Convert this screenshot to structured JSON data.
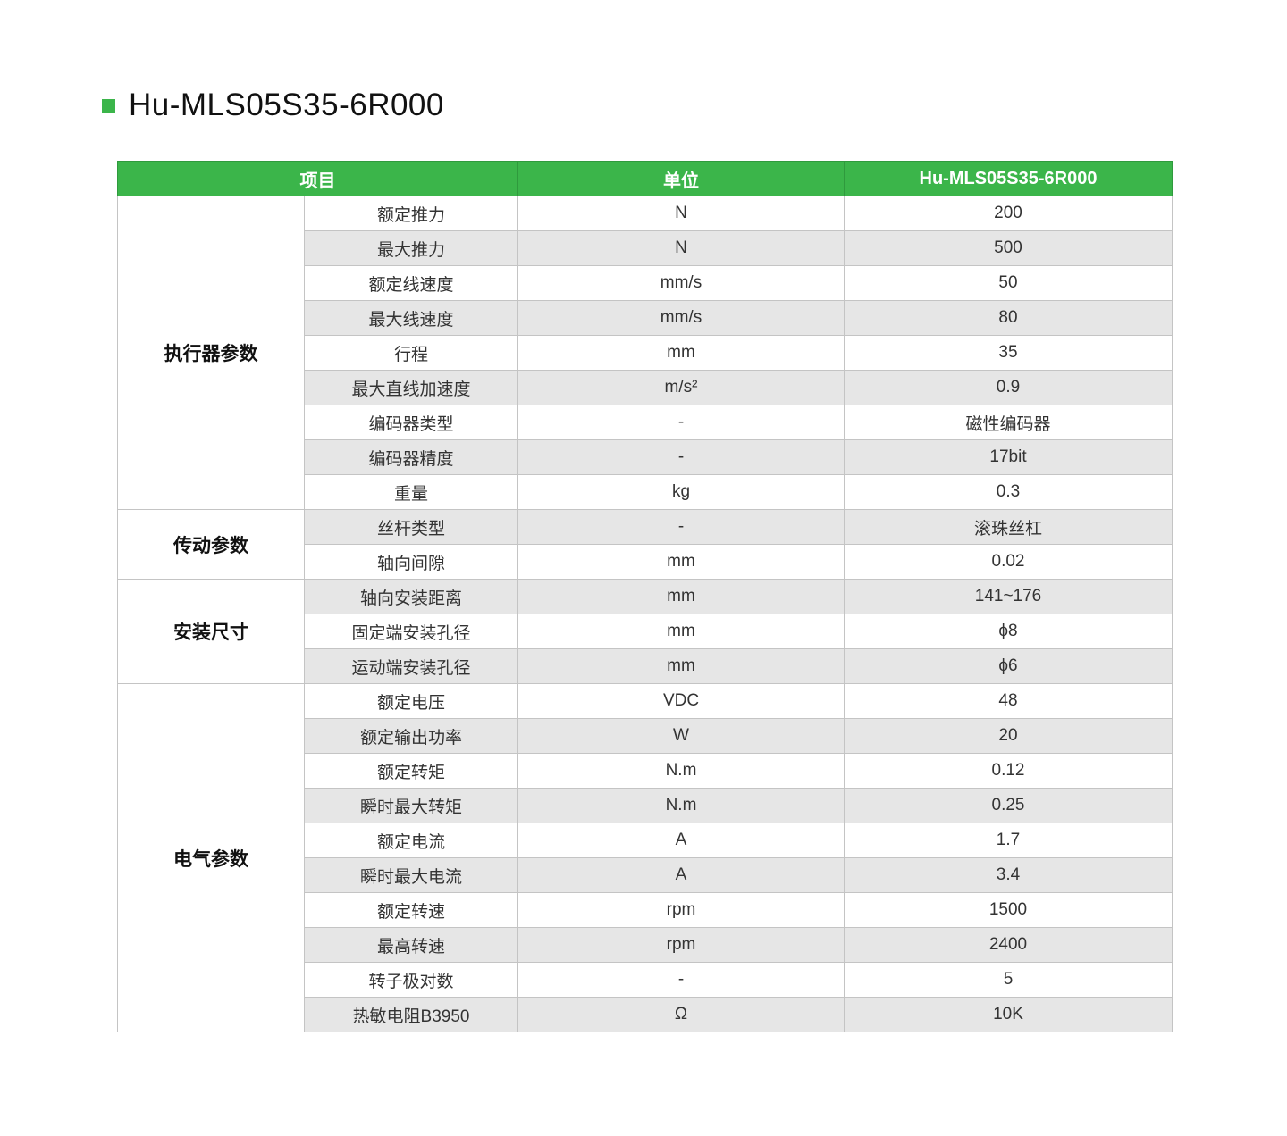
{
  "title": "Hu-MLS05S35-6R000",
  "accent_color": "#3bb54a",
  "header": {
    "item": "项目",
    "unit": "单位",
    "value": "Hu-MLS05S35-6R000"
  },
  "groups": [
    {
      "name": "执行器参数",
      "rows": [
        {
          "item": "额定推力",
          "unit": "N",
          "value": "200"
        },
        {
          "item": "最大推力",
          "unit": "N",
          "value": "500"
        },
        {
          "item": "额定线速度",
          "unit": "mm/s",
          "value": "50"
        },
        {
          "item": "最大线速度",
          "unit": "mm/s",
          "value": "80"
        },
        {
          "item": "行程",
          "unit": "mm",
          "value": "35"
        },
        {
          "item": "最大直线加速度",
          "unit": "m/s²",
          "value": "0.9"
        },
        {
          "item": "编码器类型",
          "unit": "-",
          "value": "磁性编码器"
        },
        {
          "item": "编码器精度",
          "unit": "-",
          "value": "17bit"
        },
        {
          "item": "重量",
          "unit": "kg",
          "value": "0.3"
        }
      ]
    },
    {
      "name": "传动参数",
      "rows": [
        {
          "item": "丝杆类型",
          "unit": "-",
          "value": "滚珠丝杠"
        },
        {
          "item": "轴向间隙",
          "unit": "mm",
          "value": "0.02"
        }
      ]
    },
    {
      "name": "安装尺寸",
      "rows": [
        {
          "item": "轴向安装距离",
          "unit": "mm",
          "value": "141~176"
        },
        {
          "item": "固定端安装孔径",
          "unit": "mm",
          "value": "ϕ8"
        },
        {
          "item": "运动端安装孔径",
          "unit": "mm",
          "value": "ϕ6"
        }
      ]
    },
    {
      "name": "电气参数",
      "rows": [
        {
          "item": "额定电压",
          "unit": "VDC",
          "value": "48"
        },
        {
          "item": "额定输出功率",
          "unit": "W",
          "value": "20"
        },
        {
          "item": "额定转矩",
          "unit": "N.m",
          "value": "0.12"
        },
        {
          "item": "瞬时最大转矩",
          "unit": "N.m",
          "value": "0.25"
        },
        {
          "item": "额定电流",
          "unit": "A",
          "value": "1.7"
        },
        {
          "item": "瞬时最大电流",
          "unit": "A",
          "value": "3.4"
        },
        {
          "item": "额定转速",
          "unit": "rpm",
          "value": "1500"
        },
        {
          "item": "最高转速",
          "unit": "rpm",
          "value": "2400"
        },
        {
          "item": "转子极对数",
          "unit": "-",
          "value": "5"
        },
        {
          "item": "热敏电阻B3950",
          "unit": "Ω",
          "value": "10K"
        }
      ]
    }
  ]
}
